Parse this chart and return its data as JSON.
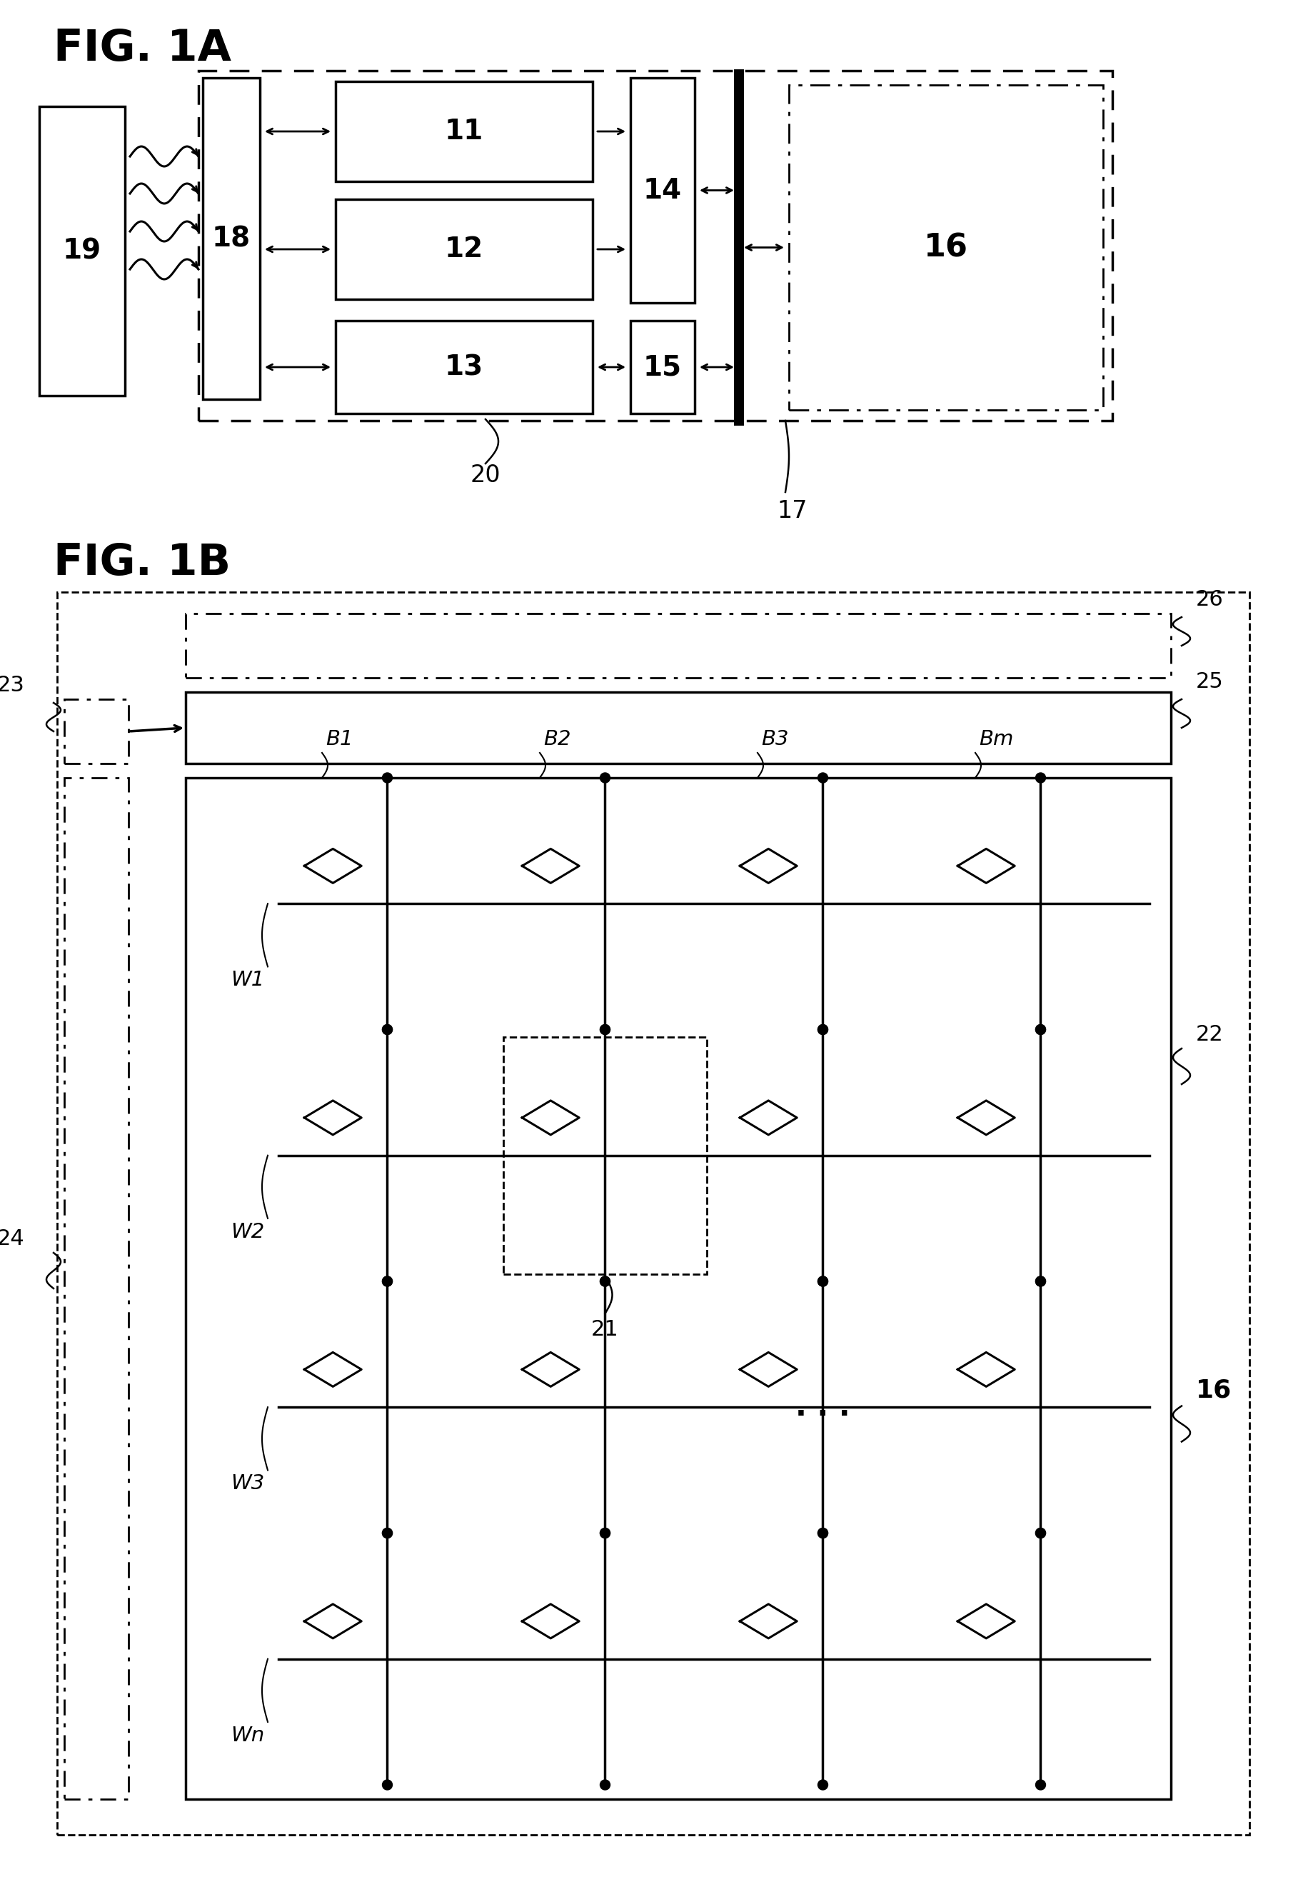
{
  "fig_title_1a": "FIG. 1A",
  "fig_title_1b": "FIG. 1B",
  "bg": "#ffffff",
  "col_labels": [
    "B1",
    "B2",
    "B3",
    "Bm"
  ],
  "row_labels": [
    "W1",
    "W2",
    "W3",
    "Wn"
  ]
}
